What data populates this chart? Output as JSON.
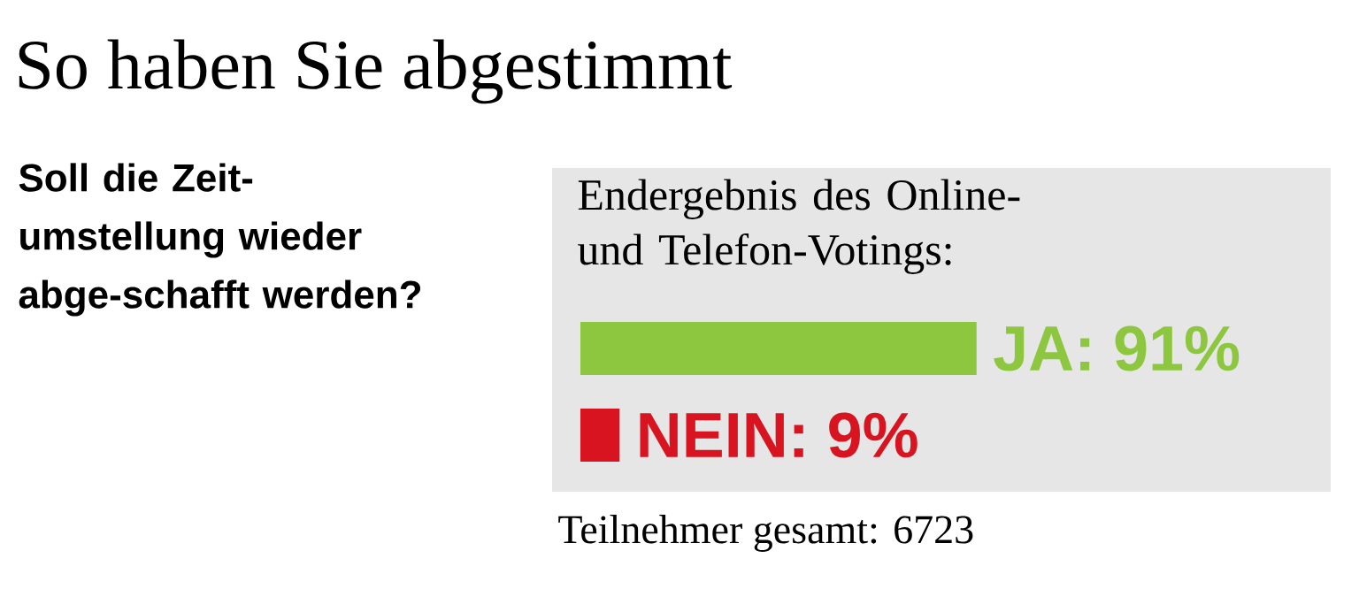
{
  "chart_data": {
    "type": "bar",
    "orientation": "horizontal",
    "title": "So haben Sie abgestimmt",
    "subtitle": "Soll die Zeit-umstellung wieder abge-schafft werden?",
    "annotations": [
      "Endergebnis des Online- und Telefon-Votings:",
      "Teilnehmer gesamt: 6723"
    ],
    "categories": [
      null,
      null
    ],
    "values": [
      91,
      9
    ],
    "colors": [
      "#8dc63f",
      "#d7141f"
    ],
    "value_labels": [
      "JA: 91%",
      "NEIN: 9%"
    ]
  }
}
